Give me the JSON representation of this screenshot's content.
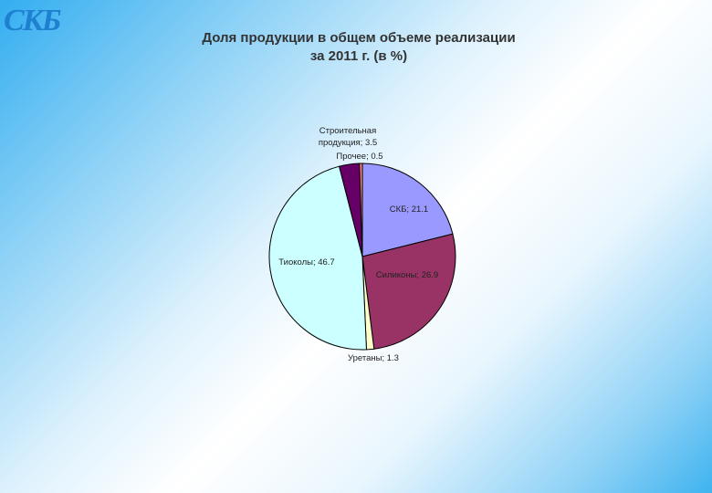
{
  "header": {
    "logo_text": "СКБ",
    "title_line1": "Доля продукции в общем объеме реализации",
    "title_line2": "за 2011 г. (в %)"
  },
  "chart_data": {
    "type": "pie",
    "title": "Доля продукции в общем объеме реализации за 2011 г. (в %)",
    "slices": [
      {
        "name": "СКБ",
        "value": 21.1,
        "label": "СКБ; 21.1",
        "color": "#9999ff"
      },
      {
        "name": "Силиконы",
        "value": 26.9,
        "label": "Силиконы; 26.9",
        "color": "#993366"
      },
      {
        "name": "Уретаны",
        "value": 1.3,
        "label": "Уретаны; 1.3",
        "color": "#ffffcc"
      },
      {
        "name": "Тиоколы",
        "value": 46.7,
        "label": "Тиоколы; 46.7",
        "color": "#ccffff"
      },
      {
        "name": "Строительная продукция",
        "value": 3.5,
        "label_lines": [
          "Строительная",
          "продукция; 3.5"
        ],
        "color": "#660066"
      },
      {
        "name": "Прочее",
        "value": 0.5,
        "label": "Прочее; 0.5",
        "color": "#ff8080"
      }
    ]
  }
}
